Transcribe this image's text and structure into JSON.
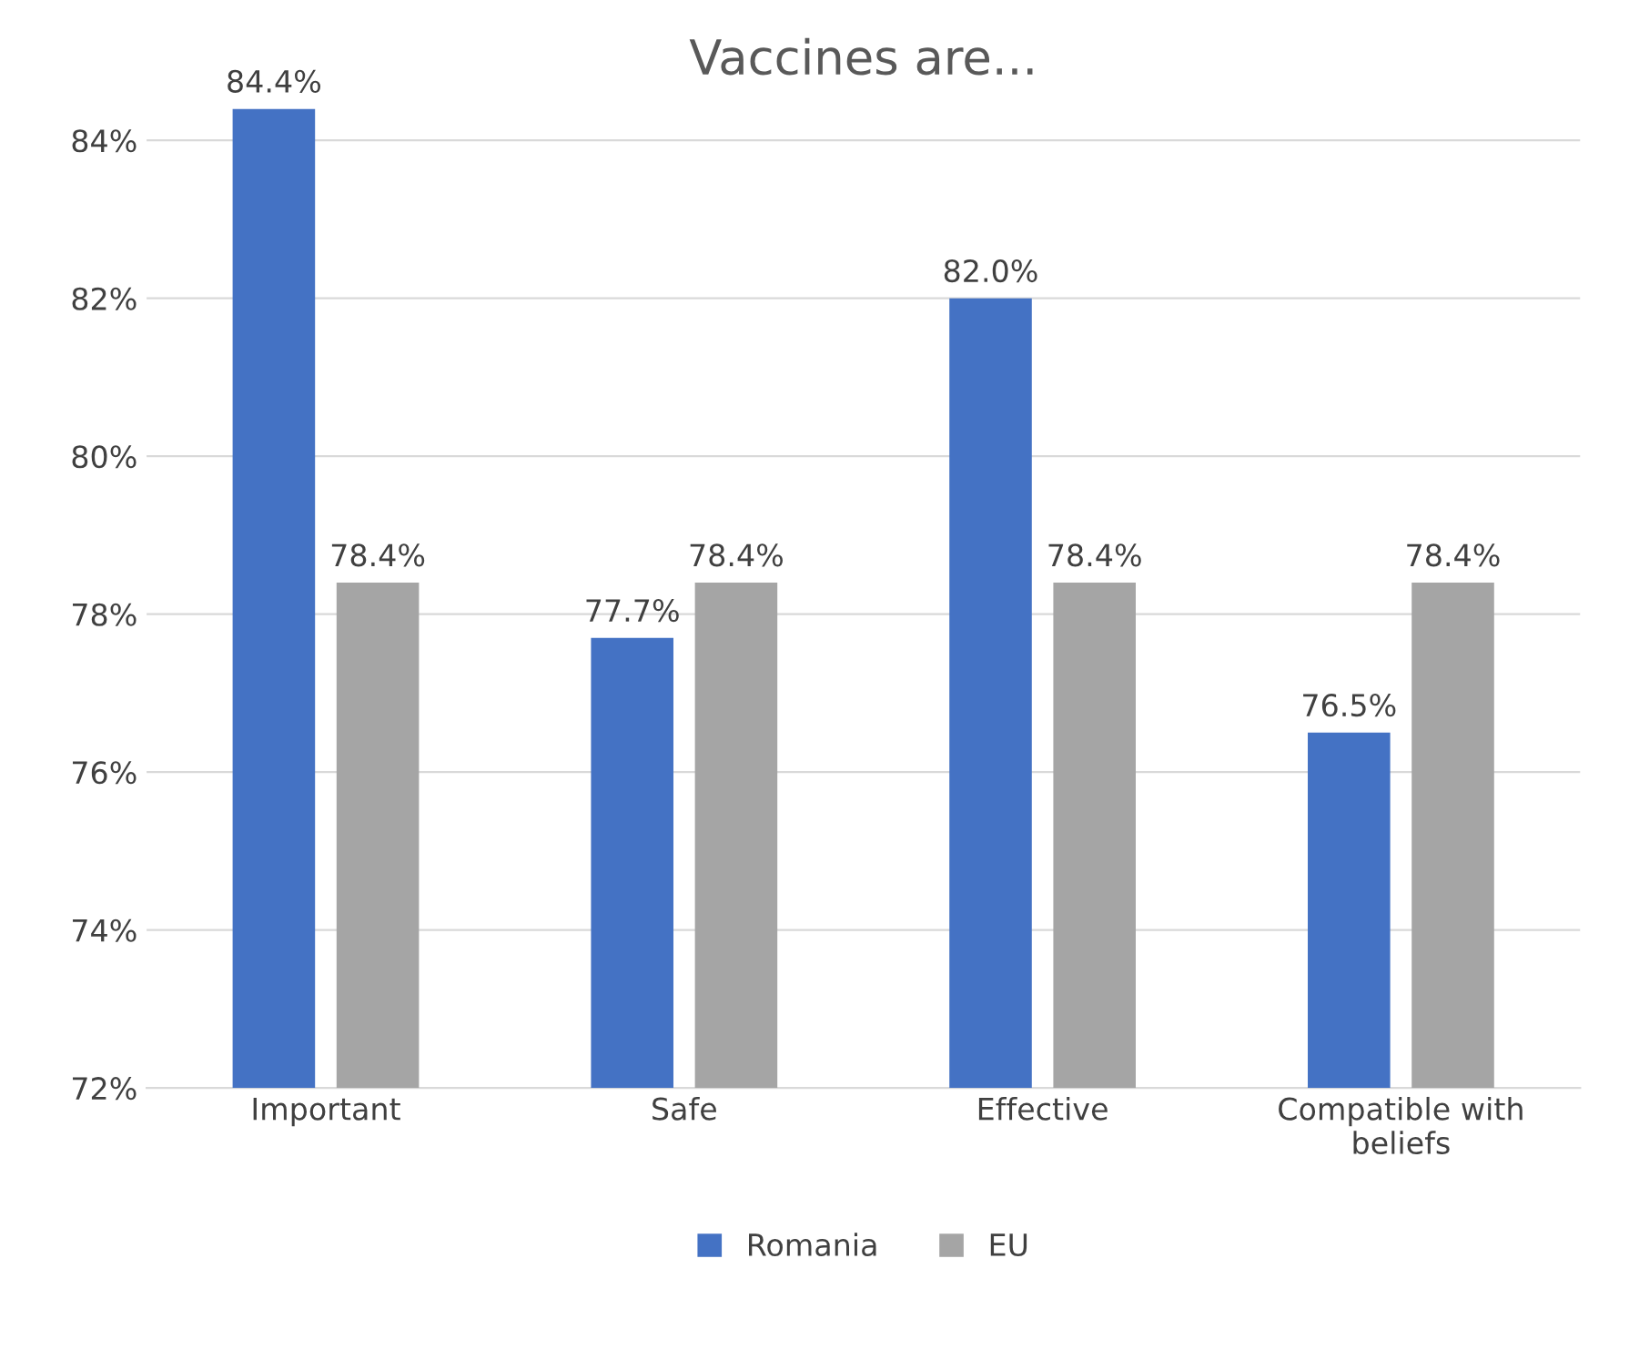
{
  "chart_data": {
    "type": "bar",
    "title": "Vaccines are...",
    "categories": [
      "Important",
      "Safe",
      "Effective",
      "Compatible with\nbeliefs"
    ],
    "series": [
      {
        "name": "Romania",
        "color": "#4472c4",
        "values": [
          84.4,
          77.7,
          82.0,
          76.5
        ],
        "value_labels": [
          "84.4%",
          "77.7%",
          "82.0%",
          "76.5%"
        ]
      },
      {
        "name": "EU",
        "color": "#a5a5a5",
        "values": [
          78.4,
          78.4,
          78.4,
          78.4
        ],
        "value_labels": [
          "78.4%",
          "78.4%",
          "78.4%",
          "78.4%"
        ]
      }
    ],
    "ylim": [
      72,
      84.4
    ],
    "yticks": [
      {
        "value": 72,
        "label": "72%"
      },
      {
        "value": 74,
        "label": "74%"
      },
      {
        "value": 76,
        "label": "76%"
      },
      {
        "value": 78,
        "label": "78%"
      },
      {
        "value": 80,
        "label": "80%"
      },
      {
        "value": 82,
        "label": "82%"
      },
      {
        "value": 84,
        "label": "84%"
      }
    ],
    "grid": "y",
    "legend": "bottom"
  }
}
